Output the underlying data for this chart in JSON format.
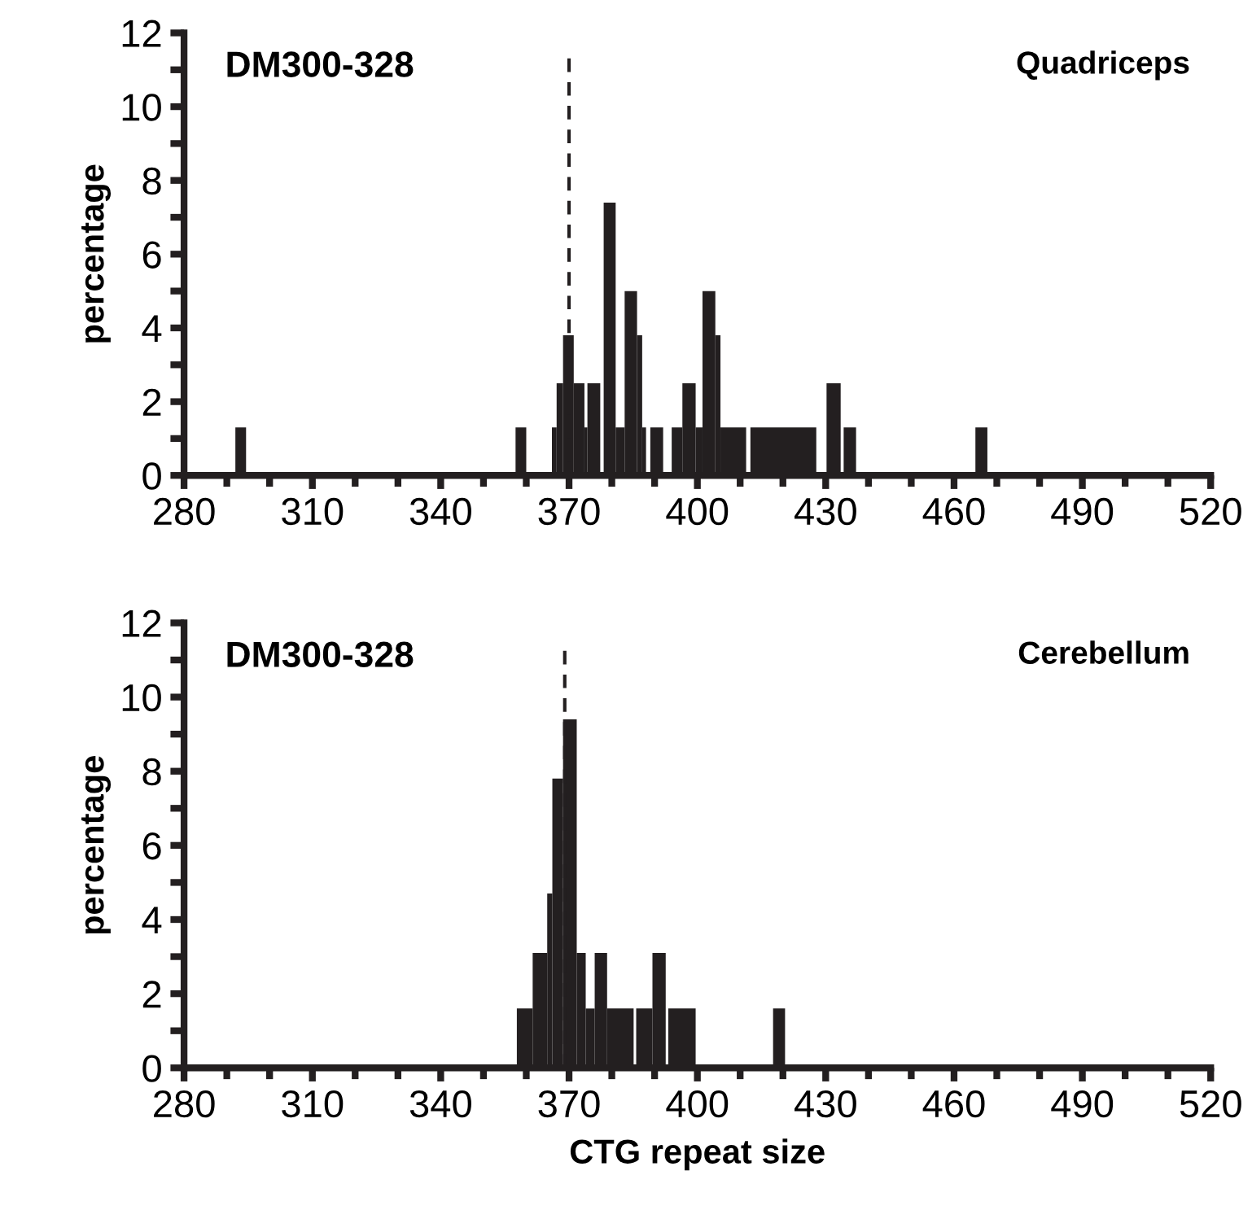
{
  "chart_data": [
    {
      "type": "histogram",
      "ylabel": "percentage",
      "annotations": [
        "DM300-328",
        "Quadriceps"
      ],
      "color": "#231f20",
      "bins": [
        292,
        294.5,
        357.5,
        360,
        366,
        367.1,
        368.6,
        371.1,
        373.6,
        374.3,
        377.3,
        378.1,
        380.9,
        383,
        385.9,
        387.1,
        388,
        389,
        392,
        394,
        396.5,
        399.6,
        401.2,
        404.2,
        405.4,
        411.4,
        412.4,
        427.8,
        430.2,
        433.5,
        434.2,
        437.1,
        465,
        467.8
      ],
      "values": [
        1.3,
        0,
        1.3,
        0,
        1.3,
        2.5,
        3.8,
        2.5,
        1.3,
        2.5,
        0,
        7.4,
        1.3,
        5.0,
        3.8,
        1.3,
        0,
        1.3,
        0,
        1.3,
        2.5,
        1.3,
        5.0,
        3.8,
        1.3,
        0,
        1.3,
        0,
        2.5,
        0,
        1.3,
        0,
        1.3
      ],
      "xlim": [
        280,
        520
      ],
      "ylim": [
        0,
        12
      ],
      "xticks": [
        280,
        {
          "value": 290,
          "label": null
        },
        {
          "value": 300,
          "label": null
        },
        310,
        {
          "value": 320,
          "label": null
        },
        {
          "value": 330,
          "label": null
        },
        340,
        {
          "value": 350,
          "label": null
        },
        {
          "value": 360,
          "label": null
        },
        370,
        {
          "value": 380,
          "label": null
        },
        {
          "value": 390,
          "label": null
        },
        400,
        {
          "value": 410,
          "label": null
        },
        {
          "value": 420,
          "label": null
        },
        430,
        {
          "value": 440,
          "label": null
        },
        {
          "value": 450,
          "label": null
        },
        460,
        {
          "value": 470,
          "label": null
        },
        {
          "value": 480,
          "label": null
        },
        490,
        {
          "value": 500,
          "label": null
        },
        {
          "value": 510,
          "label": null
        },
        520
      ],
      "yticks": [
        0,
        {
          "value": 1,
          "label": null
        },
        2,
        {
          "value": 3,
          "label": null
        },
        4,
        {
          "value": 5,
          "label": null
        },
        6,
        {
          "value": 7,
          "label": null
        },
        8,
        {
          "value": 9,
          "label": null
        },
        10,
        {
          "value": 11,
          "label": null
        },
        12
      ],
      "ref_lines": [
        {
          "axis": "x",
          "value": 370,
          "color": "#231f20",
          "line_style": "dashed"
        }
      ],
      "grid": false,
      "legend": false
    },
    {
      "type": "histogram",
      "ylabel": "percentage",
      "xlabel": "CTG repeat size",
      "annotations": [
        "DM300-328",
        "Cerebellum"
      ],
      "color": "#231f20",
      "bins": [
        357.8,
        361.5,
        364.9,
        366.1,
        368.6,
        371.8,
        373.9,
        376.0,
        378.9,
        385.1,
        385.7,
        389.5,
        392.6,
        393.2,
        399.6,
        417.7,
        420.5
      ],
      "values": [
        1.6,
        3.1,
        4.7,
        7.8,
        9.4,
        3.1,
        1.6,
        3.1,
        1.6,
        0,
        1.6,
        3.1,
        0,
        1.6,
        0,
        1.6
      ],
      "xlim": [
        280,
        520
      ],
      "ylim": [
        0,
        12
      ],
      "xticks": [
        280,
        {
          "value": 290,
          "label": null
        },
        {
          "value": 300,
          "label": null
        },
        310,
        {
          "value": 320,
          "label": null
        },
        {
          "value": 330,
          "label": null
        },
        340,
        {
          "value": 350,
          "label": null
        },
        {
          "value": 360,
          "label": null
        },
        370,
        {
          "value": 380,
          "label": null
        },
        {
          "value": 390,
          "label": null
        },
        400,
        {
          "value": 410,
          "label": null
        },
        {
          "value": 420,
          "label": null
        },
        430,
        {
          "value": 440,
          "label": null
        },
        {
          "value": 450,
          "label": null
        },
        460,
        {
          "value": 470,
          "label": null
        },
        {
          "value": 480,
          "label": null
        },
        490,
        {
          "value": 500,
          "label": null
        },
        {
          "value": 510,
          "label": null
        },
        520
      ],
      "yticks": [
        0,
        {
          "value": 1,
          "label": null
        },
        2,
        {
          "value": 3,
          "label": null
        },
        4,
        {
          "value": 5,
          "label": null
        },
        6,
        {
          "value": 7,
          "label": null
        },
        8,
        {
          "value": 9,
          "label": null
        },
        10,
        {
          "value": 11,
          "label": null
        },
        12
      ],
      "ref_lines": [
        {
          "axis": "x",
          "value": 369,
          "color": "#231f20",
          "line_style": "dashed"
        }
      ],
      "grid": false,
      "legend": false
    }
  ]
}
